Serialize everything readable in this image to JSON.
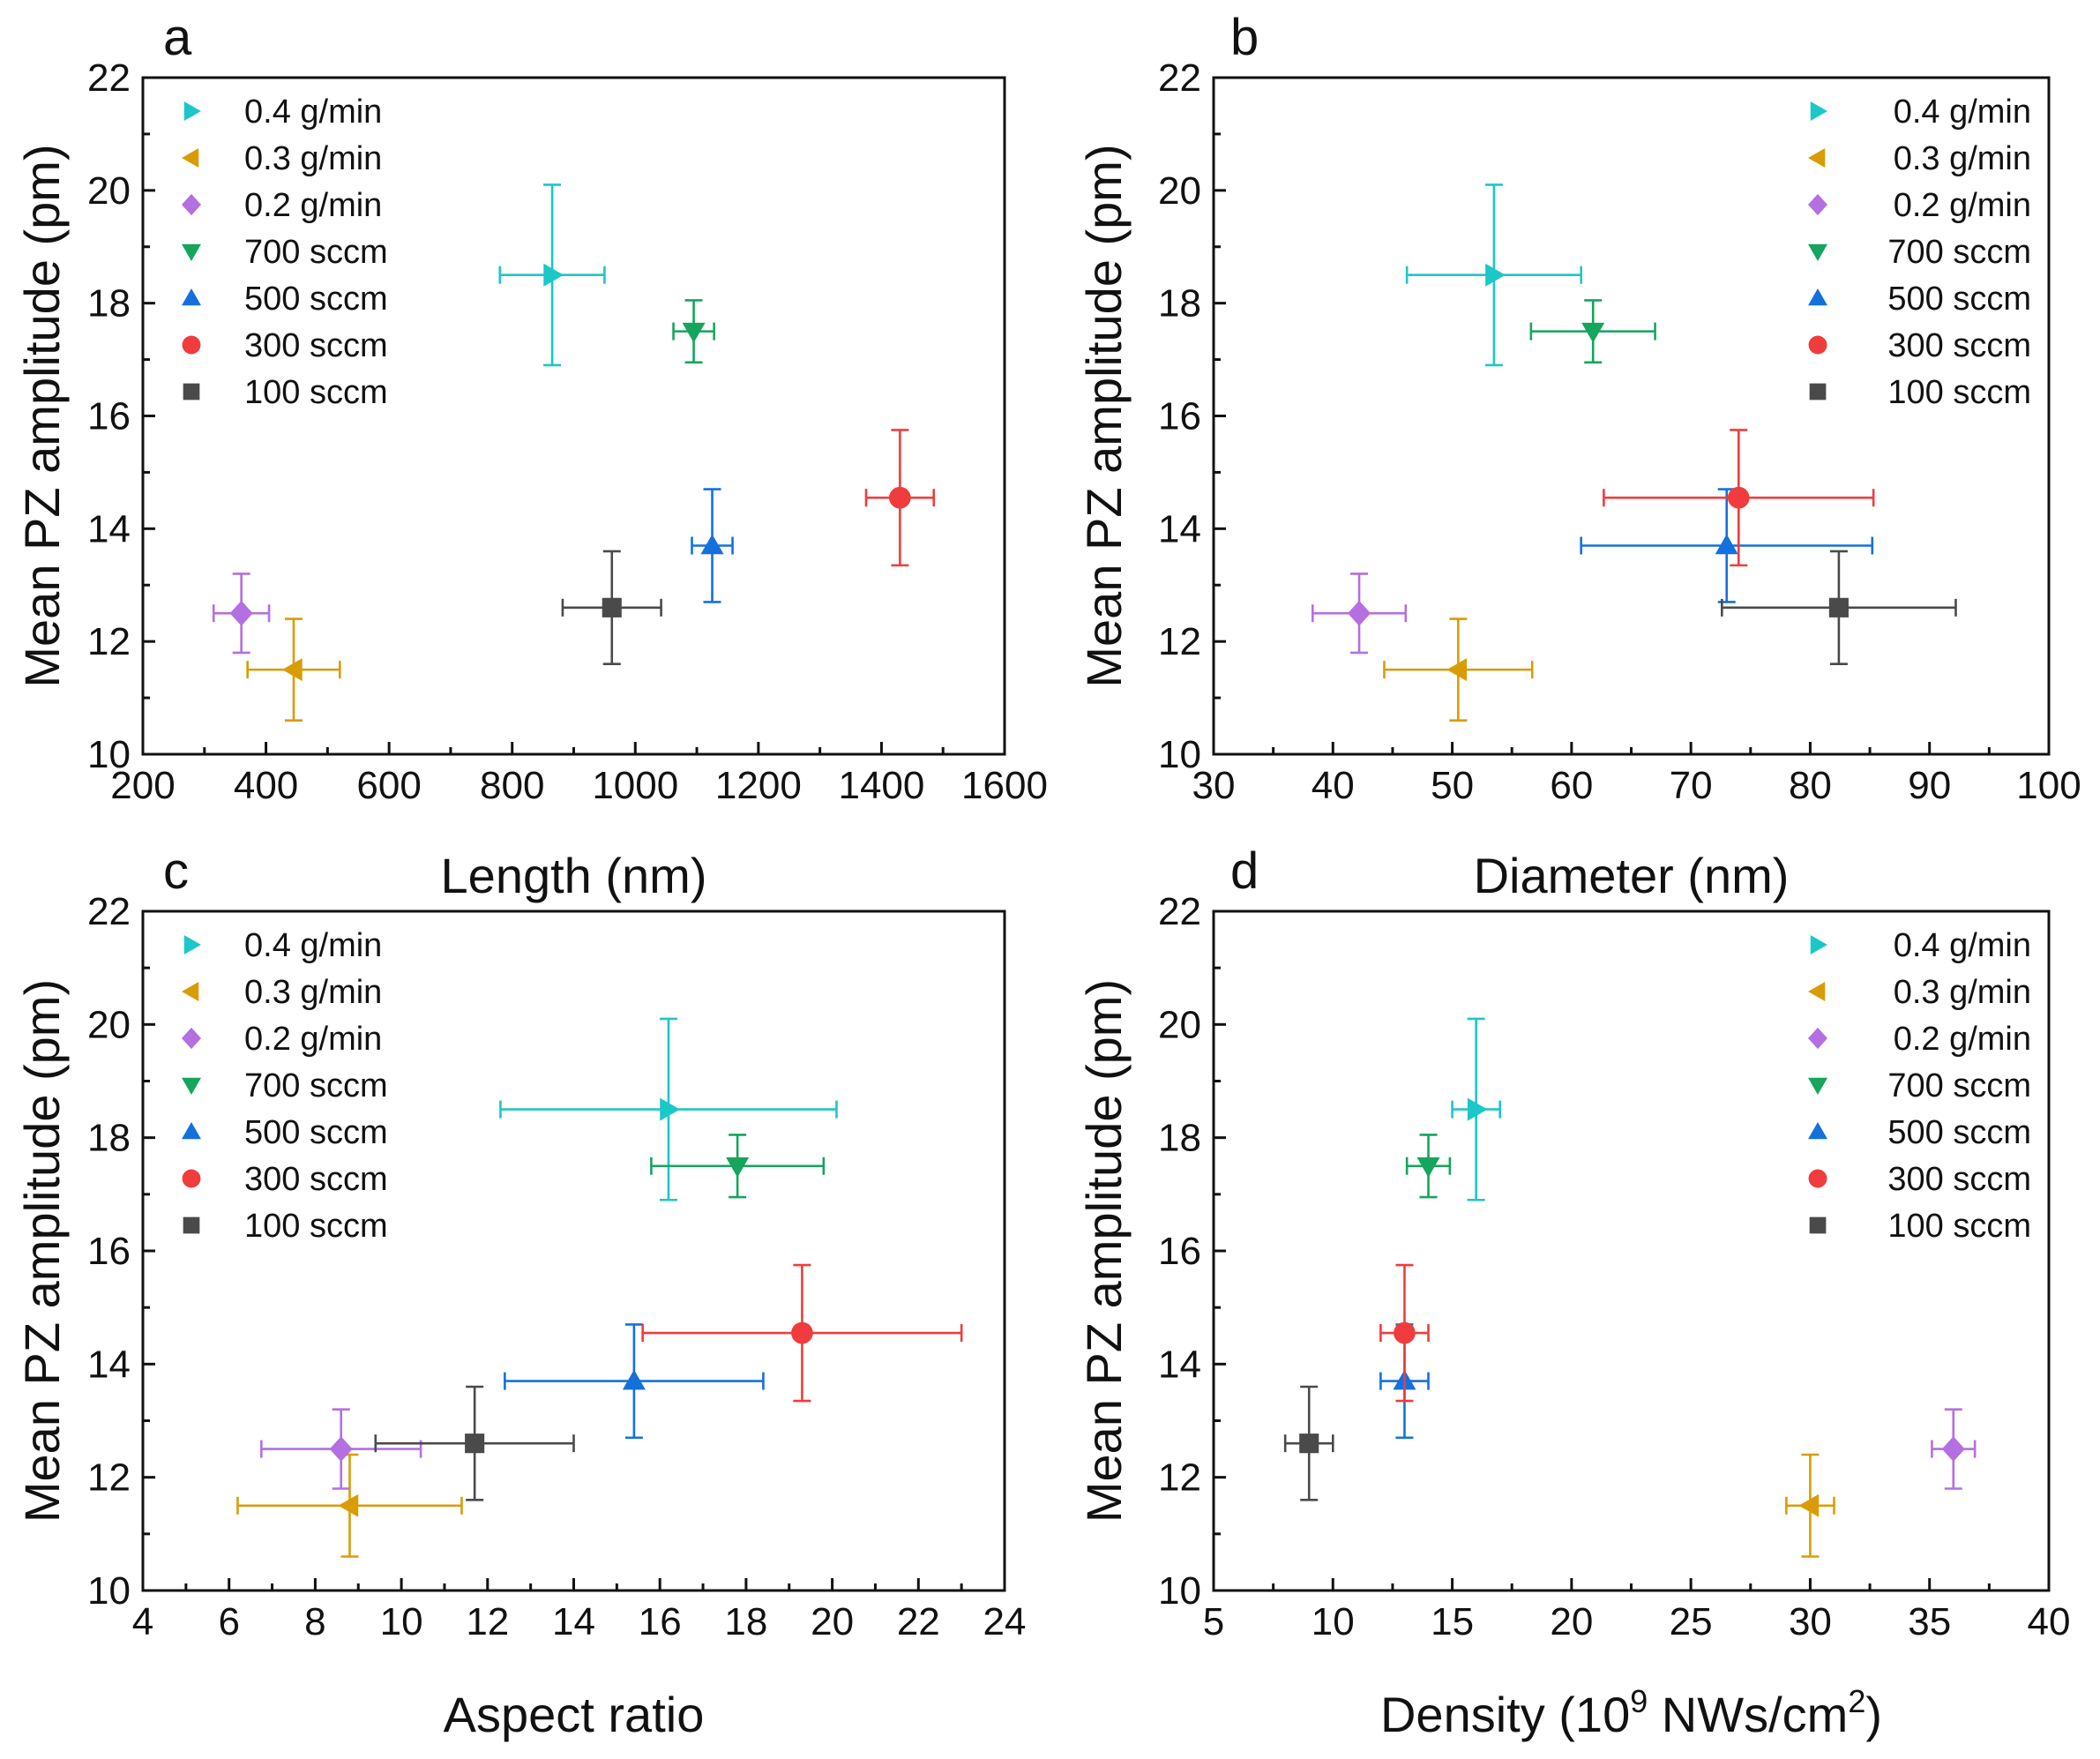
{
  "series_styles": [
    {
      "key": "g04",
      "name": "0.4 g/min",
      "color": "#1cc7c7",
      "marker": "triangle-right"
    },
    {
      "key": "g03",
      "name": "0.3 g/min",
      "color": "#d99c05",
      "marker": "triangle-left"
    },
    {
      "key": "g02",
      "name": "0.2 g/min",
      "color": "#b46fe0",
      "marker": "diamond"
    },
    {
      "key": "s700",
      "name": "700 sccm",
      "color": "#15a55c",
      "marker": "triangle-down"
    },
    {
      "key": "s500",
      "name": "500 sccm",
      "color": "#1470dc",
      "marker": "triangle-up"
    },
    {
      "key": "s300",
      "name": "300 sccm",
      "color": "#f03c3c",
      "marker": "circle"
    },
    {
      "key": "s100",
      "name": "100 sccm",
      "color": "#4a4a4a",
      "marker": "square"
    }
  ],
  "chart_data": [
    {
      "type": "scatter",
      "panel": "a",
      "xlabel": "Length (nm)",
      "ylabel": "Mean PZ amplitude (pm)",
      "xlim": [
        200,
        1600
      ],
      "ylim": [
        10,
        22
      ],
      "xticks": [
        200,
        400,
        600,
        800,
        1000,
        1200,
        1400,
        1600
      ],
      "yticks": [
        10,
        12,
        14,
        16,
        18,
        20,
        22
      ],
      "legend_position": "top-left",
      "series": [
        {
          "key": "g04",
          "x": 865,
          "y": 18.5,
          "xerr": 85,
          "yerr": 1.6
        },
        {
          "key": "g03",
          "x": 445,
          "y": 11.5,
          "xerr": 75,
          "yerr": 0.9
        },
        {
          "key": "g02",
          "x": 360,
          "y": 12.5,
          "xerr": 45,
          "yerr": 0.7
        },
        {
          "key": "s700",
          "x": 1095,
          "y": 17.5,
          "xerr": 33,
          "yerr": 0.55
        },
        {
          "key": "s500",
          "x": 1125,
          "y": 13.7,
          "xerr": 33,
          "yerr": 1.0
        },
        {
          "key": "s300",
          "x": 1430,
          "y": 14.55,
          "xerr": 55,
          "yerr": 1.2
        },
        {
          "key": "s100",
          "x": 962,
          "y": 12.6,
          "xerr": 80,
          "yerr": 1.0
        }
      ]
    },
    {
      "type": "scatter",
      "panel": "b",
      "xlabel": "Diameter (nm)",
      "ylabel": "Mean PZ amplitude (pm)",
      "xlim": [
        30,
        100
      ],
      "ylim": [
        10,
        22
      ],
      "xticks": [
        30,
        40,
        50,
        60,
        70,
        80,
        90,
        100
      ],
      "yticks": [
        10,
        12,
        14,
        16,
        18,
        20,
        22
      ],
      "legend_position": "top-right",
      "series": [
        {
          "key": "g04",
          "x": 53.5,
          "y": 18.5,
          "xerr": 7.3,
          "yerr": 1.6
        },
        {
          "key": "g03",
          "x": 50.5,
          "y": 11.5,
          "xerr": 6.2,
          "yerr": 0.9
        },
        {
          "key": "g02",
          "x": 42.2,
          "y": 12.5,
          "xerr": 3.9,
          "yerr": 0.7
        },
        {
          "key": "s700",
          "x": 61.8,
          "y": 17.5,
          "xerr": 5.2,
          "yerr": 0.55
        },
        {
          "key": "s500",
          "x": 73.0,
          "y": 13.7,
          "xerr": 12.2,
          "yerr": 1.0
        },
        {
          "key": "s300",
          "x": 74.0,
          "y": 14.55,
          "xerr": 11.3,
          "yerr": 1.2
        },
        {
          "key": "s100",
          "x": 82.4,
          "y": 12.6,
          "xerr": 9.8,
          "yerr": 1.0
        }
      ]
    },
    {
      "type": "scatter",
      "panel": "c",
      "xlabel": "Aspect ratio",
      "ylabel": "Mean PZ amplitude (pm)",
      "xlim": [
        4,
        24
      ],
      "ylim": [
        10,
        22
      ],
      "xticks": [
        4,
        6,
        8,
        10,
        12,
        14,
        16,
        18,
        20,
        22,
        24
      ],
      "yticks": [
        10,
        12,
        14,
        16,
        18,
        20,
        22
      ],
      "legend_position": "top-left",
      "series": [
        {
          "key": "g04",
          "x": 16.2,
          "y": 18.5,
          "xerr": 3.9,
          "yerr": 1.6
        },
        {
          "key": "g03",
          "x": 8.8,
          "y": 11.5,
          "xerr": 2.6,
          "yerr": 0.9
        },
        {
          "key": "g02",
          "x": 8.6,
          "y": 12.5,
          "xerr": 1.85,
          "yerr": 0.7
        },
        {
          "key": "s700",
          "x": 17.8,
          "y": 17.5,
          "xerr": 2.0,
          "yerr": 0.55
        },
        {
          "key": "s500",
          "x": 15.4,
          "y": 13.7,
          "xerr": 3.0,
          "yerr": 1.0
        },
        {
          "key": "s300",
          "x": 19.3,
          "y": 14.55,
          "xerr": 3.7,
          "yerr": 1.2
        },
        {
          "key": "s100",
          "x": 11.7,
          "y": 12.6,
          "xerr": 2.3,
          "yerr": 1.0
        }
      ]
    },
    {
      "type": "scatter",
      "panel": "d",
      "xlabel": "Density (10",
      "xlabel_sup": "9",
      "xlabel_mid": " NWs/cm",
      "xlabel_sup2": "2",
      "xlabel_end": ")",
      "ylabel": "Mean PZ amplitude (pm)",
      "xlim": [
        5,
        40
      ],
      "ylim": [
        10,
        22
      ],
      "xticks": [
        5,
        10,
        15,
        20,
        25,
        30,
        35,
        40
      ],
      "yticks": [
        10,
        12,
        14,
        16,
        18,
        20,
        22
      ],
      "legend_position": "top-right",
      "series": [
        {
          "key": "g04",
          "x": 16,
          "y": 18.5,
          "xerr": 1.0,
          "yerr": 1.6
        },
        {
          "key": "g03",
          "x": 30,
          "y": 11.5,
          "xerr": 1.0,
          "yerr": 0.9
        },
        {
          "key": "g02",
          "x": 36,
          "y": 12.5,
          "xerr": 0.9,
          "yerr": 0.7
        },
        {
          "key": "s700",
          "x": 14,
          "y": 17.5,
          "xerr": 0.9,
          "yerr": 0.55
        },
        {
          "key": "s500",
          "x": 13,
          "y": 13.7,
          "xerr": 1.0,
          "yerr": 1.0
        },
        {
          "key": "s300",
          "x": 13,
          "y": 14.55,
          "xerr": 1.0,
          "yerr": 1.2
        },
        {
          "key": "s100",
          "x": 9,
          "y": 12.6,
          "xerr": 1.0,
          "yerr": 1.0
        }
      ]
    }
  ]
}
